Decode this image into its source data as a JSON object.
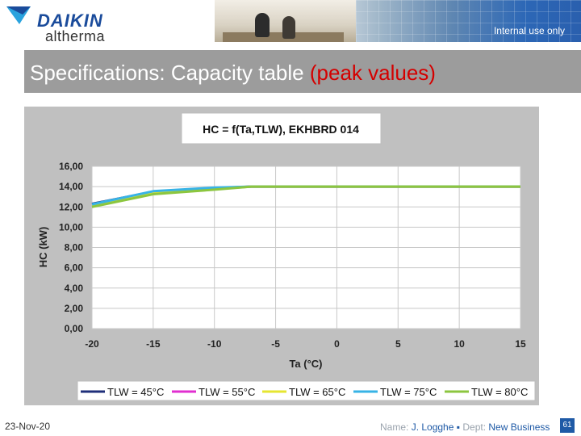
{
  "header": {
    "brand": "DAIKIN",
    "sub_brand": "altherma",
    "internal_label": "Internal use only"
  },
  "slide": {
    "title_main": "Specifications: Capacity table",
    "title_highlight": "(peak values)"
  },
  "footer": {
    "date": "23-Nov-20",
    "name_label": "Name:",
    "name_value": "J. Logghe",
    "separator": "▪",
    "dept_label": "Dept:",
    "dept_value": "New Business",
    "page_number": "61"
  },
  "chart_data": {
    "type": "line",
    "title": "HC = f(Ta,TLW), EKHBRD 014",
    "xlabel": "Ta (°C)",
    "ylabel": "HC (kW)",
    "x": [
      -20,
      -15,
      -10,
      -7,
      -5,
      0,
      5,
      10,
      15
    ],
    "xticks": [
      "-20",
      "-15",
      "-10",
      "-5",
      "0",
      "5",
      "10",
      "15"
    ],
    "yticks": [
      "0,00",
      "2,00",
      "4,00",
      "6,00",
      "8,00",
      "10,00",
      "12,00",
      "14,00",
      "16,00"
    ],
    "xlim": [
      -20,
      15
    ],
    "ylim": [
      0,
      16
    ],
    "grid": true,
    "legend_position": "bottom",
    "series": [
      {
        "name": "TLW = 45°C",
        "color": "#1f2f7a",
        "values": [
          12.3,
          13.5,
          13.85,
          14.0,
          14.0,
          14.0,
          14.0,
          14.0,
          14.0
        ]
      },
      {
        "name": "TLW = 55°C",
        "color": "#e12fd0",
        "values": [
          12.2,
          13.45,
          13.8,
          14.0,
          14.0,
          14.0,
          14.0,
          14.0,
          14.0
        ]
      },
      {
        "name": "TLW = 65°C",
        "color": "#e6e631",
        "values": [
          12.1,
          13.4,
          13.75,
          14.0,
          14.0,
          14.0,
          14.0,
          14.0,
          14.0
        ]
      },
      {
        "name": "TLW = 75°C",
        "color": "#37b3e6",
        "values": [
          12.25,
          13.55,
          13.9,
          14.0,
          14.0,
          14.0,
          14.0,
          14.0,
          14.0
        ]
      },
      {
        "name": "TLW = 80°C",
        "color": "#8cc63f",
        "values": [
          12.0,
          13.25,
          13.7,
          14.0,
          14.0,
          14.0,
          14.0,
          14.0,
          14.0
        ]
      }
    ]
  }
}
